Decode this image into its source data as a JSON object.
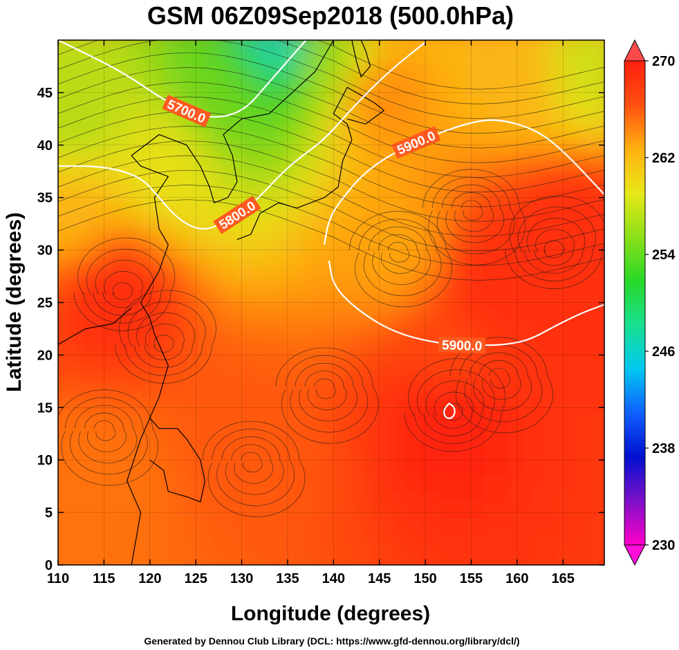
{
  "title": "GSM 06Z09Sep2018 (500.0hPa)",
  "footer": "Generated by Dennou Club Library (DCL: https://www.gfd-dennou.org/library/dcl/)",
  "chart_data": {
    "type": "heatmap",
    "title": "GSM 06Z09Sep2018 (500.0hPa)",
    "xlabel": "Longitude (degrees)",
    "ylabel": "Latitude  (degrees)",
    "xlim": [
      110,
      169.5
    ],
    "ylim": [
      0,
      50
    ],
    "xticks": [
      110,
      115,
      120,
      125,
      130,
      135,
      140,
      145,
      150,
      155,
      160,
      165
    ],
    "yticks": [
      0,
      5,
      10,
      15,
      20,
      25,
      30,
      35,
      40,
      45
    ],
    "x_tick_labels": [
      "110",
      "115",
      "120",
      "125",
      "130",
      "135",
      "140",
      "145",
      "150",
      "155",
      "160",
      "165"
    ],
    "y_tick_labels": [
      "0",
      "5",
      "10",
      "15",
      "20",
      "25",
      "30",
      "35",
      "40",
      "45"
    ],
    "colorbar": {
      "min": 230,
      "max": 270,
      "tick_values": [
        230,
        238,
        246,
        254,
        262,
        270
      ],
      "tick_labels": [
        "230",
        "238",
        "246",
        "254",
        "262",
        "270"
      ],
      "colors": [
        "#ff00c8",
        "#7e10c8",
        "#0010d0",
        "#1060ff",
        "#00c8f0",
        "#18e090",
        "#28d828",
        "#8ce018",
        "#e8e818",
        "#ffb010",
        "#ff5010",
        "#ff2010"
      ]
    },
    "temperature_features": [
      {
        "lon": 134,
        "lat": 50,
        "value": 247
      },
      {
        "lon": 128,
        "lat": 45,
        "value": 254
      },
      {
        "lon": 140,
        "lat": 48,
        "value": 256
      },
      {
        "lon": 112,
        "lat": 42,
        "value": 257
      },
      {
        "lon": 122,
        "lat": 38,
        "value": 259
      },
      {
        "lon": 112,
        "lat": 34,
        "value": 262
      },
      {
        "lon": 147,
        "lat": 30,
        "value": 263
      },
      {
        "lon": 160,
        "lat": 47,
        "value": 262
      },
      {
        "lon": 145,
        "lat": 45,
        "value": 264
      },
      {
        "lon": 168,
        "lat": 48,
        "value": 258
      },
      {
        "lon": 116,
        "lat": 26,
        "value": 269
      },
      {
        "lon": 166,
        "lat": 31,
        "value": 269
      },
      {
        "lon": 165,
        "lat": 28,
        "value": 269
      },
      {
        "lon": 157,
        "lat": 26,
        "value": 269
      },
      {
        "lon": 153,
        "lat": 15,
        "value": 270
      },
      {
        "lon": 153,
        "lat": 20,
        "value": 267
      },
      {
        "lon": 130,
        "lat": 12,
        "value": 266
      },
      {
        "lon": 115,
        "lat": 8,
        "value": 265
      }
    ],
    "contours": [
      {
        "label": "5700.0",
        "value": 5700,
        "points": [
          [
            110,
            50
          ],
          [
            117,
            47
          ],
          [
            122,
            44
          ],
          [
            126,
            42.5
          ],
          [
            130,
            43
          ],
          [
            133,
            46
          ],
          [
            137,
            50
          ]
        ]
      },
      {
        "label": "5800.0",
        "value": 5800,
        "points": [
          [
            110,
            38
          ],
          [
            115,
            38
          ],
          [
            119,
            37
          ],
          [
            121,
            35
          ],
          [
            123,
            33
          ],
          [
            125.5,
            31.8
          ],
          [
            128,
            32.5
          ],
          [
            131,
            34.2
          ],
          [
            134,
            37
          ],
          [
            136,
            38.6
          ],
          [
            139,
            40.5
          ],
          [
            142,
            43.5
          ],
          [
            146,
            47
          ],
          [
            150,
            49.8
          ]
        ]
      },
      {
        "label": "5900.0",
        "value": 5900,
        "points": [
          [
            139,
            30.5
          ],
          [
            139.5,
            33
          ],
          [
            141,
            35
          ],
          [
            143.5,
            37.5
          ],
          [
            147,
            39.5
          ],
          [
            151,
            41
          ],
          [
            155,
            42.2
          ],
          [
            158,
            42.5
          ],
          [
            162,
            41.5
          ],
          [
            165,
            39.5
          ],
          [
            169.5,
            35.3
          ]
        ]
      },
      {
        "label": "5900.0",
        "value": 5900,
        "points": [
          [
            139.5,
            29
          ],
          [
            140,
            26.5
          ],
          [
            143,
            24
          ],
          [
            147,
            22
          ],
          [
            152,
            21
          ],
          [
            156,
            20.9
          ],
          [
            159,
            21
          ],
          [
            161.5,
            21.5
          ],
          [
            164,
            22.7
          ],
          [
            167,
            24
          ],
          [
            169.5,
            24.8
          ]
        ]
      },
      {
        "label": "",
        "value": 5900,
        "points": [
          [
            152.6,
            15.4
          ],
          [
            153.2,
            15.0
          ],
          [
            153.2,
            14.3
          ],
          [
            152.7,
            13.9
          ],
          [
            152.1,
            14.1
          ],
          [
            152,
            14.8
          ],
          [
            152.6,
            15.4
          ]
        ]
      }
    ]
  }
}
